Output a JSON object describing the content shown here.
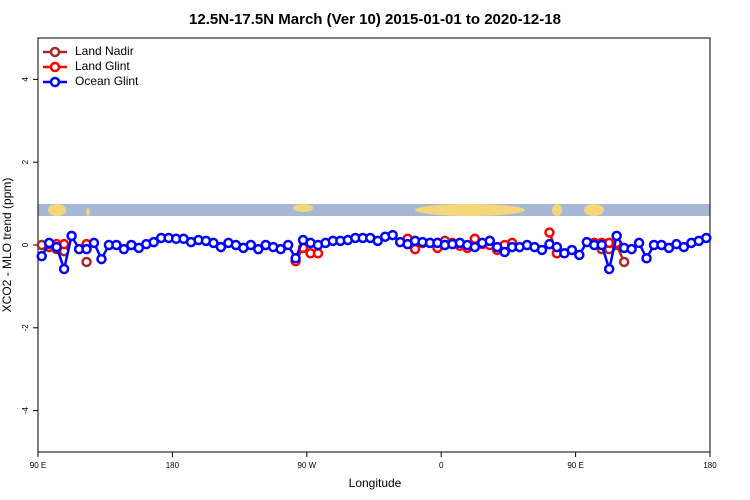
{
  "chart_data": {
    "type": "line",
    "title": "12.5N-17.5N March (Ver 10)   2015-01-01 to 2020-12-18",
    "xlabel": "Longitude",
    "ylabel": "XCO2 - MLO trend (ppm)",
    "x": [
      92.5,
      97.5,
      102.5,
      107.5,
      112.5,
      117.5,
      122.5,
      127.5,
      132.5,
      137.5,
      142.5,
      147.5,
      152.5,
      157.5,
      162.5,
      167.5,
      172.5,
      177.5,
      182.5,
      187.5,
      192.5,
      197.5,
      202.5,
      207.5,
      212.5,
      217.5,
      222.5,
      227.5,
      232.5,
      237.5,
      242.5,
      247.5,
      252.5,
      257.5,
      262.5,
      267.5,
      272.5,
      277.5,
      282.5,
      287.5,
      292.5,
      297.5,
      302.5,
      307.5,
      312.5,
      317.5,
      322.5,
      327.5,
      332.5,
      337.5,
      342.5,
      347.5,
      352.5,
      357.5,
      362.5,
      367.5,
      372.5,
      377.5,
      382.5,
      387.5,
      392.5,
      397.5,
      402.5,
      407.5,
      412.5,
      417.5,
      422.5,
      427.5,
      432.5,
      437.5,
      442.5,
      447.5,
      452.5,
      457.5,
      462.5,
      467.5,
      472.5,
      477.5,
      482.5,
      487.5,
      492.5,
      497.5,
      502.5,
      507.5,
      512.5,
      517.5,
      522.5,
      527.5,
      532.5,
      537.5
    ],
    "series": [
      {
        "name": "Land Nadir",
        "color": "#a52a2a",
        "values": [
          0,
          -0.05,
          -0.1,
          -0.15,
          null,
          null,
          -0.41,
          null,
          null,
          null,
          null,
          null,
          null,
          null,
          null,
          null,
          null,
          null,
          null,
          null,
          null,
          null,
          null,
          null,
          null,
          null,
          null,
          null,
          null,
          null,
          null,
          null,
          null,
          null,
          null,
          null,
          null,
          null,
          null,
          null,
          null,
          null,
          null,
          null,
          null,
          null,
          null,
          null,
          null,
          null,
          null,
          null,
          null,
          0.05,
          0.1,
          null,
          null,
          null,
          null,
          null,
          0.1,
          null,
          null,
          null,
          null,
          null,
          null,
          null,
          null,
          -0.2,
          null,
          null,
          null,
          null,
          null,
          -0.1,
          -0.1,
          0,
          -0.41,
          null,
          null,
          null,
          null,
          null,
          null,
          null,
          null,
          null,
          null,
          null
        ]
      },
      {
        "name": "Land Glint",
        "color": "#ff0000",
        "values": [
          null,
          0.02,
          0.02,
          0.02,
          null,
          null,
          0.02,
          null,
          null,
          null,
          null,
          null,
          null,
          null,
          null,
          null,
          null,
          null,
          null,
          null,
          null,
          null,
          null,
          null,
          null,
          null,
          null,
          null,
          null,
          null,
          null,
          null,
          null,
          null,
          -0.39,
          -0.07,
          -0.2,
          -0.2,
          null,
          null,
          null,
          null,
          null,
          null,
          null,
          null,
          null,
          null,
          null,
          0.15,
          -0.1,
          0.05,
          0.05,
          -0.07,
          0,
          0.05,
          -0.02,
          -0.07,
          0.15,
          0.02,
          0,
          -0.12,
          0,
          0.05,
          null,
          null,
          null,
          null,
          0.3,
          -0.2,
          null,
          null,
          null,
          null,
          0.05,
          0.05,
          0.05,
          0.05,
          null,
          null,
          null,
          null,
          null,
          null,
          null,
          null,
          null,
          null,
          null,
          null
        ]
      },
      {
        "name": "Ocean Glint",
        "color": "#0000ff",
        "values": [
          -0.27,
          0.05,
          -0.05,
          -0.58,
          0.22,
          -0.1,
          -0.1,
          0.05,
          -0.34,
          0,
          0,
          -0.1,
          0,
          -0.07,
          0.02,
          0.07,
          0.17,
          0.17,
          0.15,
          0.15,
          0.07,
          0.12,
          0.1,
          0.05,
          -0.05,
          0.05,
          0,
          -0.07,
          0,
          -0.1,
          0,
          -0.05,
          -0.1,
          0,
          -0.32,
          0.12,
          0.05,
          0,
          0.05,
          0.1,
          0.1,
          0.12,
          0.17,
          0.17,
          0.17,
          0.1,
          0.2,
          0.24,
          0.07,
          0.02,
          0.1,
          0.07,
          0.05,
          0.05,
          0,
          0.02,
          0.05,
          0,
          -0.05,
          0.05,
          0.1,
          -0.05,
          -0.17,
          -0.05,
          -0.05,
          0,
          -0.05,
          -0.12,
          0.02,
          -0.05,
          -0.2,
          -0.12,
          -0.24,
          0.07,
          0,
          0,
          -0.58,
          0.22,
          -0.07,
          -0.1,
          0.05,
          -0.32,
          0,
          0,
          -0.07,
          0.02,
          -0.05,
          0.05,
          0.1,
          0.17
        ]
      }
    ],
    "xlim": [
      90,
      540
    ],
    "xticks": [
      {
        "value": 90,
        "label": "90 E"
      },
      180,
      {
        "value": 270,
        "label": "90 W"
      },
      {
        "value": 360,
        "label": "0"
      },
      {
        "value": 450,
        "label": "90 E"
      },
      {
        "value": 540,
        "label": "180"
      }
    ],
    "ylim": [
      -5,
      5
    ],
    "yticks": [
      -4,
      -2,
      0,
      2,
      4
    ],
    "legend": "top-left"
  }
}
